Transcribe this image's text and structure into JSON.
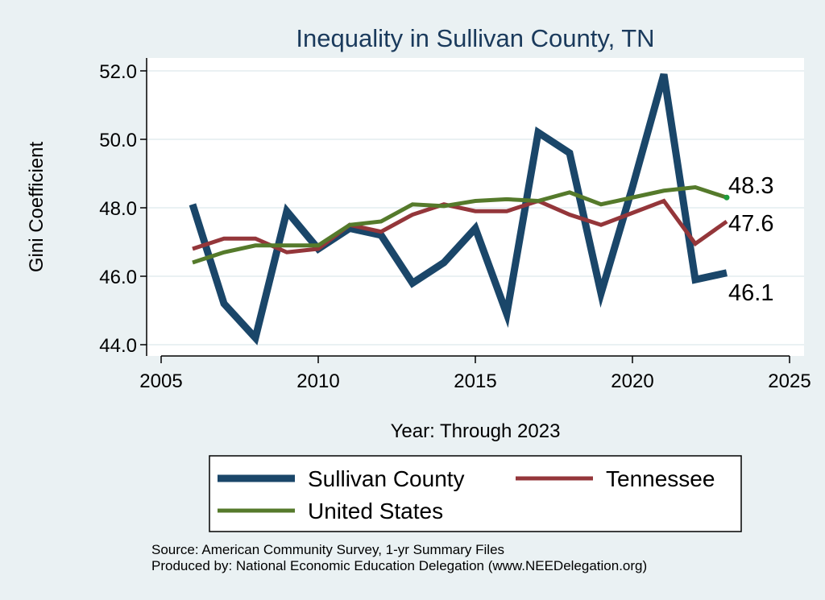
{
  "colors": {
    "background": "#eaf1f3",
    "plot_area": "#ffffff",
    "grid": "#eaf1f3",
    "title": "#1a3a5c",
    "sullivan": "#1a4669",
    "tennessee": "#94363a",
    "united_states": "#557a2b",
    "us_end_dot": "#1e9b3c"
  },
  "chart_data": {
    "type": "line",
    "title": "Inequality in Sullivan County, TN",
    "xlabel": "Year: Through 2023",
    "ylabel": "Gini Coefficient",
    "xlim": [
      2005,
      2025
    ],
    "ylim": [
      44.0,
      52.0
    ],
    "xticks": [
      2005,
      2010,
      2015,
      2020,
      2025
    ],
    "yticks": [
      44.0,
      46.0,
      48.0,
      50.0,
      52.0
    ],
    "ytick_labels": [
      "44.0",
      "46.0",
      "48.0",
      "50.0",
      "52.0"
    ],
    "x": [
      2006,
      2007,
      2008,
      2009,
      2010,
      2011,
      2012,
      2013,
      2014,
      2015,
      2016,
      2017,
      2018,
      2019,
      2020,
      2021,
      2022,
      2023
    ],
    "series": [
      {
        "name": "Sullivan County",
        "color_key": "sullivan",
        "width": "thick",
        "values": [
          48.1,
          45.2,
          44.2,
          47.9,
          46.8,
          47.4,
          47.2,
          45.8,
          46.4,
          47.4,
          44.9,
          50.2,
          49.6,
          45.5,
          48.6,
          51.9,
          45.9,
          46.1
        ],
        "end_label": "46.1"
      },
      {
        "name": "Tennessee",
        "color_key": "tennessee",
        "width": "medium",
        "values": [
          46.8,
          47.1,
          47.1,
          46.7,
          46.8,
          47.5,
          47.3,
          47.8,
          48.1,
          47.9,
          47.9,
          48.2,
          47.8,
          47.5,
          47.85,
          48.2,
          46.95,
          47.6
        ],
        "end_label": "47.6"
      },
      {
        "name": "United States",
        "color_key": "united_states",
        "width": "medium",
        "values": [
          46.4,
          46.7,
          46.9,
          46.9,
          46.9,
          47.5,
          47.6,
          48.1,
          48.05,
          48.2,
          48.25,
          48.2,
          48.45,
          48.1,
          48.3,
          48.5,
          48.6,
          48.3
        ],
        "end_label": "48.3"
      }
    ],
    "legend": {
      "items": [
        "Sullivan County",
        "Tennessee",
        "United States"
      ],
      "placement": "bottom"
    },
    "footnotes": [
      "Source: American Community Survey, 1-yr Summary Files",
      "Produced by: National Economic Education Delegation (www.NEEDelegation.org)"
    ]
  }
}
